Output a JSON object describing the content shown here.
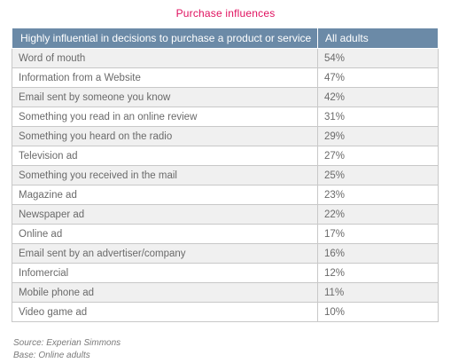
{
  "chart_data": {
    "type": "table",
    "title": "Purchase influences",
    "columns": [
      "Highly influential in decisions to purchase a product or service",
      "All adults"
    ],
    "rows": [
      {
        "label": "Word of mouth",
        "value": "54%"
      },
      {
        "label": "Information from a Website",
        "value": "47%"
      },
      {
        "label": "Email sent by someone you know",
        "value": "42%"
      },
      {
        "label": "Something you read in an online review",
        "value": "31%"
      },
      {
        "label": "Something you heard on the radio",
        "value": "29%"
      },
      {
        "label": "Television ad",
        "value": "27%"
      },
      {
        "label": "Something you received in the mail",
        "value": "25%"
      },
      {
        "label": "Magazine ad",
        "value": "23%"
      },
      {
        "label": "Newspaper ad",
        "value": "22%"
      },
      {
        "label": "Online ad",
        "value": "17%"
      },
      {
        "label": "Email sent by an advertiser/company",
        "value": "16%"
      },
      {
        "label": "Infomercial",
        "value": "12%"
      },
      {
        "label": "Mobile phone ad",
        "value": "11%"
      },
      {
        "label": "Video game ad",
        "value": "10%"
      }
    ]
  },
  "footnotes": {
    "source": "Source: Experian Simmons",
    "base": "Base: Online adults"
  },
  "colors": {
    "title": "#e0115f",
    "header_background": "#6b8aa7",
    "shaded_row": "#f0f0f0"
  }
}
